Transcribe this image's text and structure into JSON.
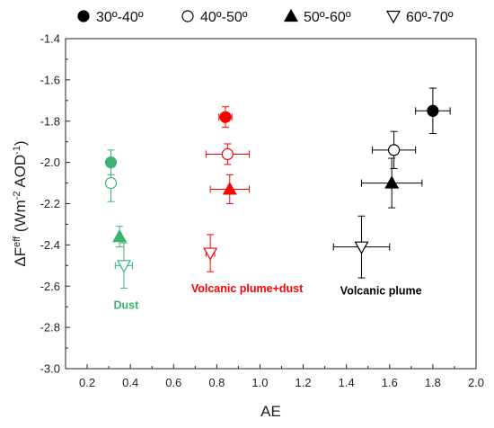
{
  "chart_data": {
    "type": "scatter",
    "xlabel": "AE",
    "ylabel": {
      "base": "ΔF",
      "sup1": "eff",
      "mid": " (Wm",
      "sup2": "-2",
      "mid2": " AOD",
      "sup3": "-1",
      "end": ")"
    },
    "xlim": [
      0.1,
      2.0
    ],
    "ylim": [
      -3.0,
      -1.4
    ],
    "x_ticks": [
      "0.2",
      "0.4",
      "0.6",
      "0.8",
      "1.0",
      "1.2",
      "1.4",
      "1.6",
      "1.8",
      "2.0"
    ],
    "y_ticks": [
      "-3.0",
      "-2.8",
      "-2.6",
      "-2.4",
      "-2.2",
      "-2.0",
      "-1.8",
      "-1.6",
      "-1.4"
    ],
    "grid": false,
    "legend_position": "top",
    "legend": [
      {
        "label": "30º-40º",
        "marker": "circle",
        "filled": true
      },
      {
        "label": "40º-50º",
        "marker": "circle",
        "filled": false
      },
      {
        "label": "50º-60º",
        "marker": "triangle-up",
        "filled": true
      },
      {
        "label": "60º-70º",
        "marker": "triangle-down",
        "filled": false
      }
    ],
    "groups": [
      {
        "annotation": "Dust",
        "color": "#3cb371",
        "annotation_at": {
          "x": 0.38,
          "y": -2.71
        },
        "points": [
          {
            "marker": "circle",
            "filled": true,
            "x": 0.31,
            "y": -2.0,
            "xerr": 0.0,
            "yerr": 0.06
          },
          {
            "marker": "circle",
            "filled": false,
            "x": 0.31,
            "y": -2.1,
            "xerr": 0.01,
            "yerr": 0.09
          },
          {
            "marker": "triangle-up",
            "filled": true,
            "x": 0.35,
            "y": -2.36,
            "xerr": 0.01,
            "yerr": 0.05
          },
          {
            "marker": "triangle-down",
            "filled": false,
            "x": 0.37,
            "y": -2.5,
            "xerr": 0.04,
            "yerr": 0.11
          }
        ]
      },
      {
        "annotation": "Volcanic plume+dust",
        "color": "#ff0000",
        "annotation_at": {
          "x": 0.94,
          "y": -2.63
        },
        "points": [
          {
            "marker": "circle",
            "filled": true,
            "x": 0.84,
            "y": -1.78,
            "xerr": 0.03,
            "yerr": 0.05
          },
          {
            "marker": "circle",
            "filled": false,
            "x": 0.85,
            "y": -1.96,
            "xerr": 0.1,
            "yerr": 0.05
          },
          {
            "marker": "triangle-up",
            "filled": true,
            "x": 0.86,
            "y": -2.13,
            "xerr": 0.09,
            "yerr": 0.07
          },
          {
            "marker": "triangle-down",
            "filled": false,
            "x": 0.77,
            "y": -2.44,
            "xerr": 0.02,
            "yerr": 0.09
          }
        ]
      },
      {
        "annotation": "Volcanic plume",
        "color": "#000000",
        "annotation_at": {
          "x": 1.56,
          "y": -2.64
        },
        "points": [
          {
            "marker": "circle",
            "filled": true,
            "x": 1.8,
            "y": -1.75,
            "xerr": 0.08,
            "yerr": 0.11
          },
          {
            "marker": "circle",
            "filled": false,
            "x": 1.62,
            "y": -1.94,
            "xerr": 0.1,
            "yerr": 0.09
          },
          {
            "marker": "triangle-up",
            "filled": true,
            "x": 1.61,
            "y": -2.1,
            "xerr": 0.14,
            "yerr": 0.12
          },
          {
            "marker": "triangle-down",
            "filled": false,
            "x": 1.47,
            "y": -2.41,
            "xerr": 0.13,
            "yerr": 0.15
          }
        ]
      }
    ]
  }
}
